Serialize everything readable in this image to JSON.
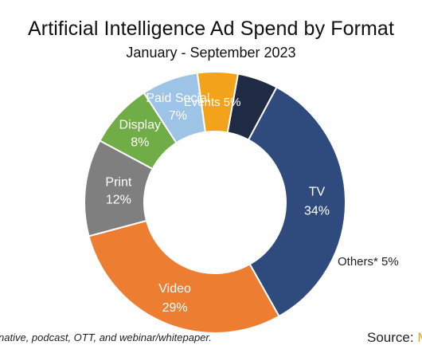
{
  "chart_data": {
    "type": "pie",
    "title": "Artificial Intelligence Ad Spend by Format",
    "subtitle": "January - September 2023",
    "donut": true,
    "slices": [
      {
        "label": "Print",
        "value": 12,
        "value_label": "12%",
        "color": "#7f7f7f",
        "label_color": "#ffffff"
      },
      {
        "label": "Display",
        "value": 8,
        "value_label": "8%",
        "color": "#70ad47",
        "label_color": "#ffffff"
      },
      {
        "label": "Paid Social",
        "value": 7,
        "value_label": "7%",
        "color": "#9dc3e6",
        "label_color": "#ffffff"
      },
      {
        "label": "Events",
        "value": 5,
        "value_label": "5%",
        "color": "#f2a21b",
        "label_color": "#ffffff"
      },
      {
        "label": "Others*",
        "value": 5,
        "value_label": "5%",
        "color": "#1f2a44",
        "label_color": "#222222"
      },
      {
        "label": "TV",
        "value": 34,
        "value_label": "34%",
        "color": "#2f4a7d",
        "label_color": "#ffffff"
      },
      {
        "label": "Video",
        "value": 29,
        "value_label": "29%",
        "color": "#ed7d31",
        "label_color": "#ffffff"
      }
    ],
    "footnote": "native, podcast, OTT, and webinar/whitepaper.",
    "source_label": "Source:",
    "source_brand": "M"
  }
}
